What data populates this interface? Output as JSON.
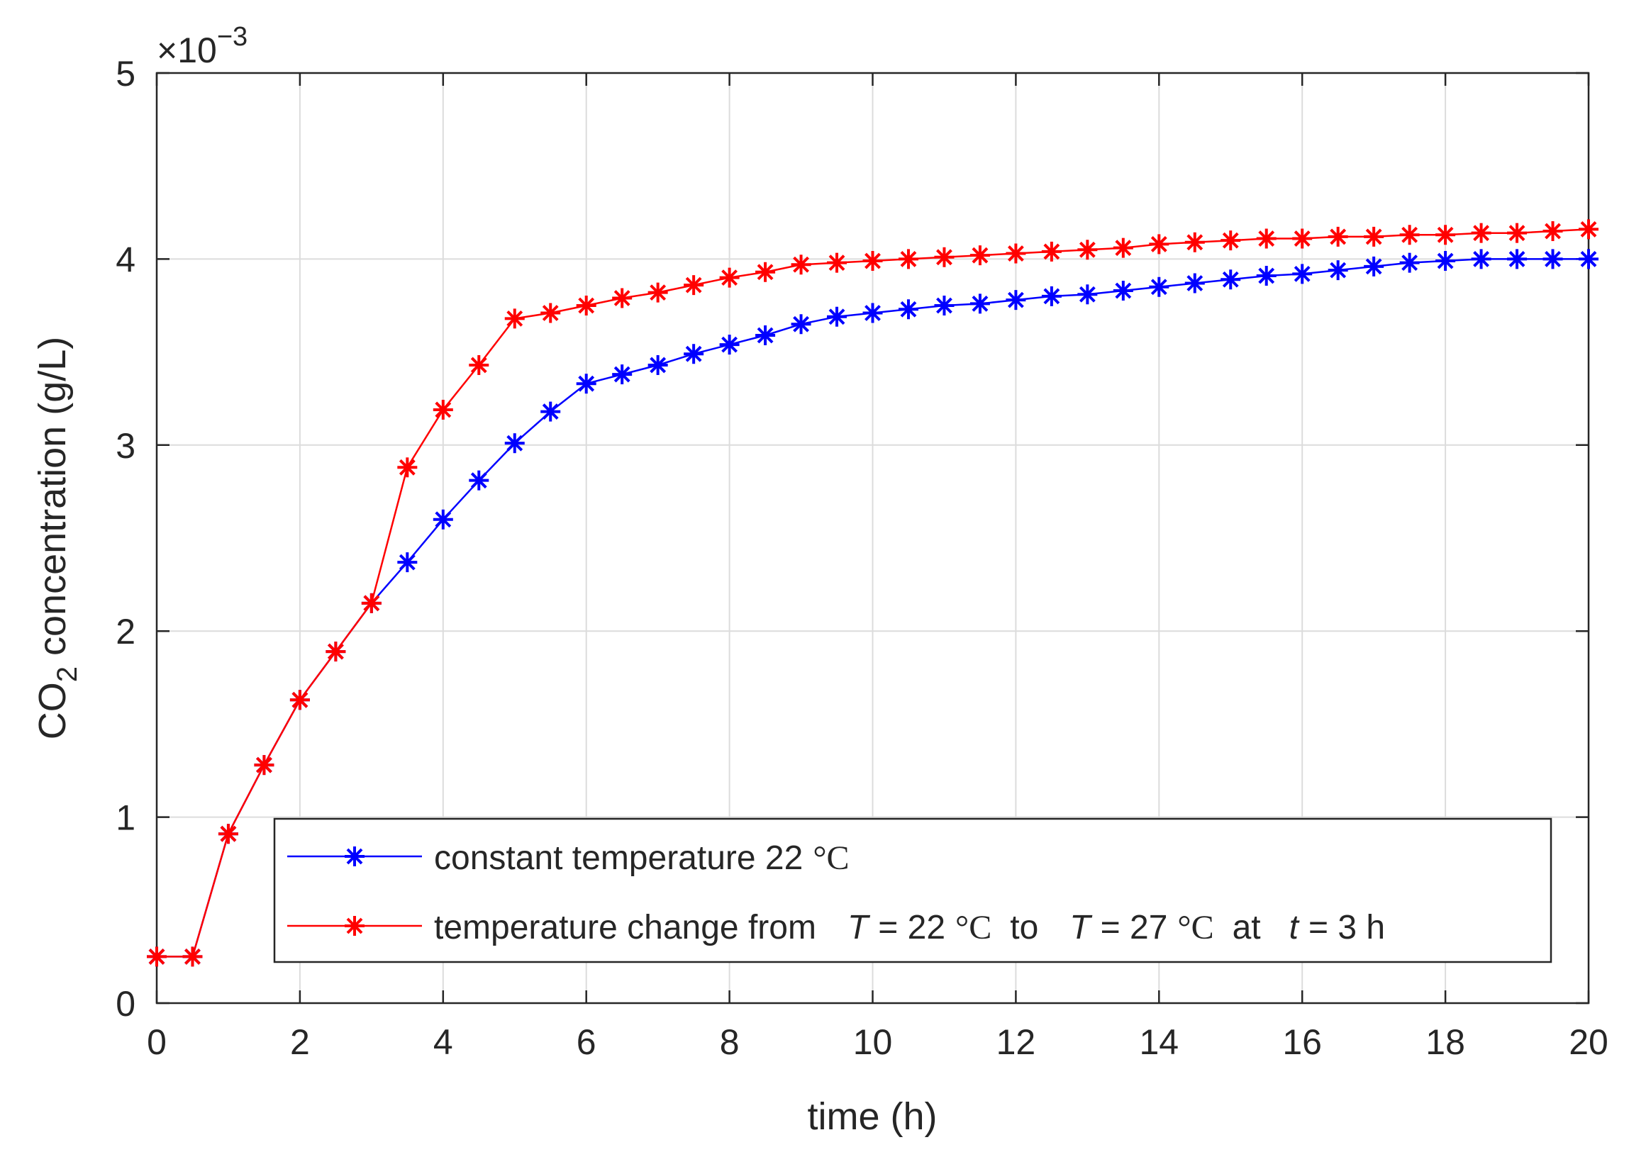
{
  "chart_data": {
    "type": "line",
    "title": "",
    "xlabel": "time (h)",
    "ylabel": {
      "prefix": "CO",
      "subscript": "2",
      "suffix": " concentration (g/L)"
    },
    "exponent": {
      "base": "×10",
      "power": "−3"
    },
    "xlim": [
      0,
      20
    ],
    "ylim": [
      0,
      5
    ],
    "xticks": [
      "0",
      "2",
      "4",
      "6",
      "8",
      "10",
      "12",
      "14",
      "16",
      "18",
      "20"
    ],
    "yticks": [
      "0",
      "1",
      "2",
      "3",
      "4",
      "5"
    ],
    "grid": true,
    "x": [
      0,
      0.5,
      1,
      1.5,
      2,
      2.5,
      3,
      3.5,
      4,
      4.5,
      5,
      5.5,
      6,
      6.5,
      7,
      7.5,
      8,
      8.5,
      9,
      9.5,
      10,
      10.5,
      11,
      11.5,
      12,
      12.5,
      13,
      13.5,
      14,
      14.5,
      15,
      15.5,
      16,
      16.5,
      17,
      17.5,
      18,
      18.5,
      19,
      19.5,
      20
    ],
    "series": [
      {
        "name": "constant temperature 22 °C",
        "color": "#0000ff",
        "marker": "*",
        "values": [
          0.25,
          0.25,
          0.91,
          1.28,
          1.63,
          1.89,
          2.15,
          2.37,
          2.6,
          2.81,
          3.01,
          3.18,
          3.33,
          3.38,
          3.43,
          3.49,
          3.54,
          3.59,
          3.65,
          3.69,
          3.71,
          3.73,
          3.75,
          3.76,
          3.78,
          3.8,
          3.81,
          3.83,
          3.85,
          3.87,
          3.89,
          3.91,
          3.92,
          3.94,
          3.96,
          3.98,
          3.99,
          4.0,
          4.0,
          4.0,
          4.0
        ]
      },
      {
        "name": "temperature change from T = 22 °C to T = 27 °C at t = 3 h",
        "color": "#ff0000",
        "marker": "*",
        "values": [
          0.25,
          0.25,
          0.91,
          1.28,
          1.63,
          1.89,
          2.15,
          2.88,
          3.19,
          3.43,
          3.68,
          3.71,
          3.75,
          3.79,
          3.82,
          3.86,
          3.9,
          3.93,
          3.97,
          3.98,
          3.99,
          4.0,
          4.01,
          4.02,
          4.03,
          4.04,
          4.05,
          4.06,
          4.08,
          4.09,
          4.1,
          4.11,
          4.11,
          4.12,
          4.12,
          4.13,
          4.13,
          4.14,
          4.14,
          4.15,
          4.16
        ]
      }
    ],
    "legend": {
      "position": "bottom-right",
      "entry1": {
        "text": "constant temperature 22",
        "unit": "°C"
      },
      "entry2": {
        "part1": "temperature change from",
        "var1": "T",
        "part2": "= 22",
        "unit1": "°C",
        "part3": "to",
        "var2": "T",
        "part4": "= 27",
        "unit2": "°C",
        "part5": "at",
        "var3": "t",
        "part6": "= 3 h"
      }
    }
  },
  "colors": {
    "axis": "#262626",
    "grid": "#dcdcdc"
  }
}
